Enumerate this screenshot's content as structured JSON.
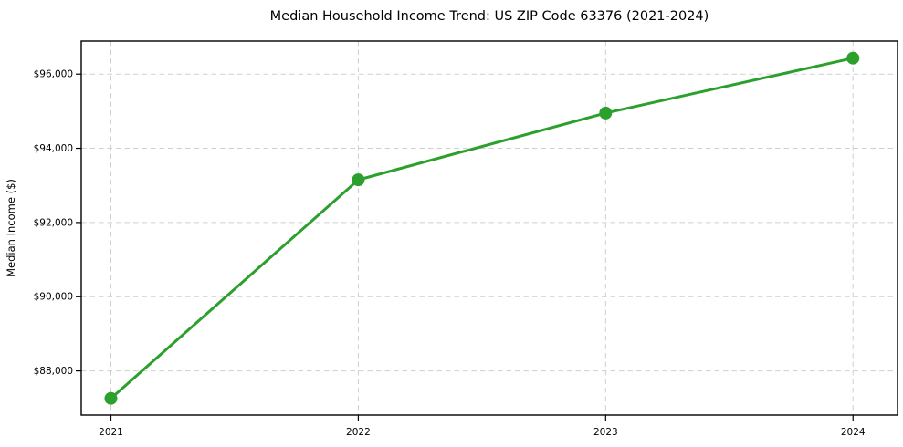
{
  "chart_data": {
    "type": "line",
    "title": "Median Household Income Trend: US ZIP Code 63376 (2021-2024)",
    "xlabel": "",
    "ylabel": "Median Income ($)",
    "x": [
      2021,
      2022,
      2023,
      2024
    ],
    "categories": [
      "2021",
      "2022",
      "2023",
      "2024"
    ],
    "series": [
      {
        "name": "Median Household Income",
        "values": [
          87260,
          93150,
          94950,
          96430
        ]
      }
    ],
    "xticks": [
      2021,
      2022,
      2023,
      2024
    ],
    "xtick_labels": [
      "2021",
      "2022",
      "2023",
      "2024"
    ],
    "yticks": [
      88000,
      90000,
      92000,
      94000,
      96000
    ],
    "ytick_labels": [
      "$88,000",
      "$90,000",
      "$92,000",
      "$94,000",
      "$96,000"
    ],
    "xlim": [
      2020.88,
      2024.18
    ],
    "ylim": [
      86810,
      96890
    ],
    "line_color": "#2ca02c",
    "marker": "circle",
    "marker_radius": 7,
    "line_width": 3,
    "grid": {
      "visible": true,
      "style": "dashed",
      "color": "#cfcfcf"
    },
    "legend_position": "none",
    "frame": "box"
  }
}
